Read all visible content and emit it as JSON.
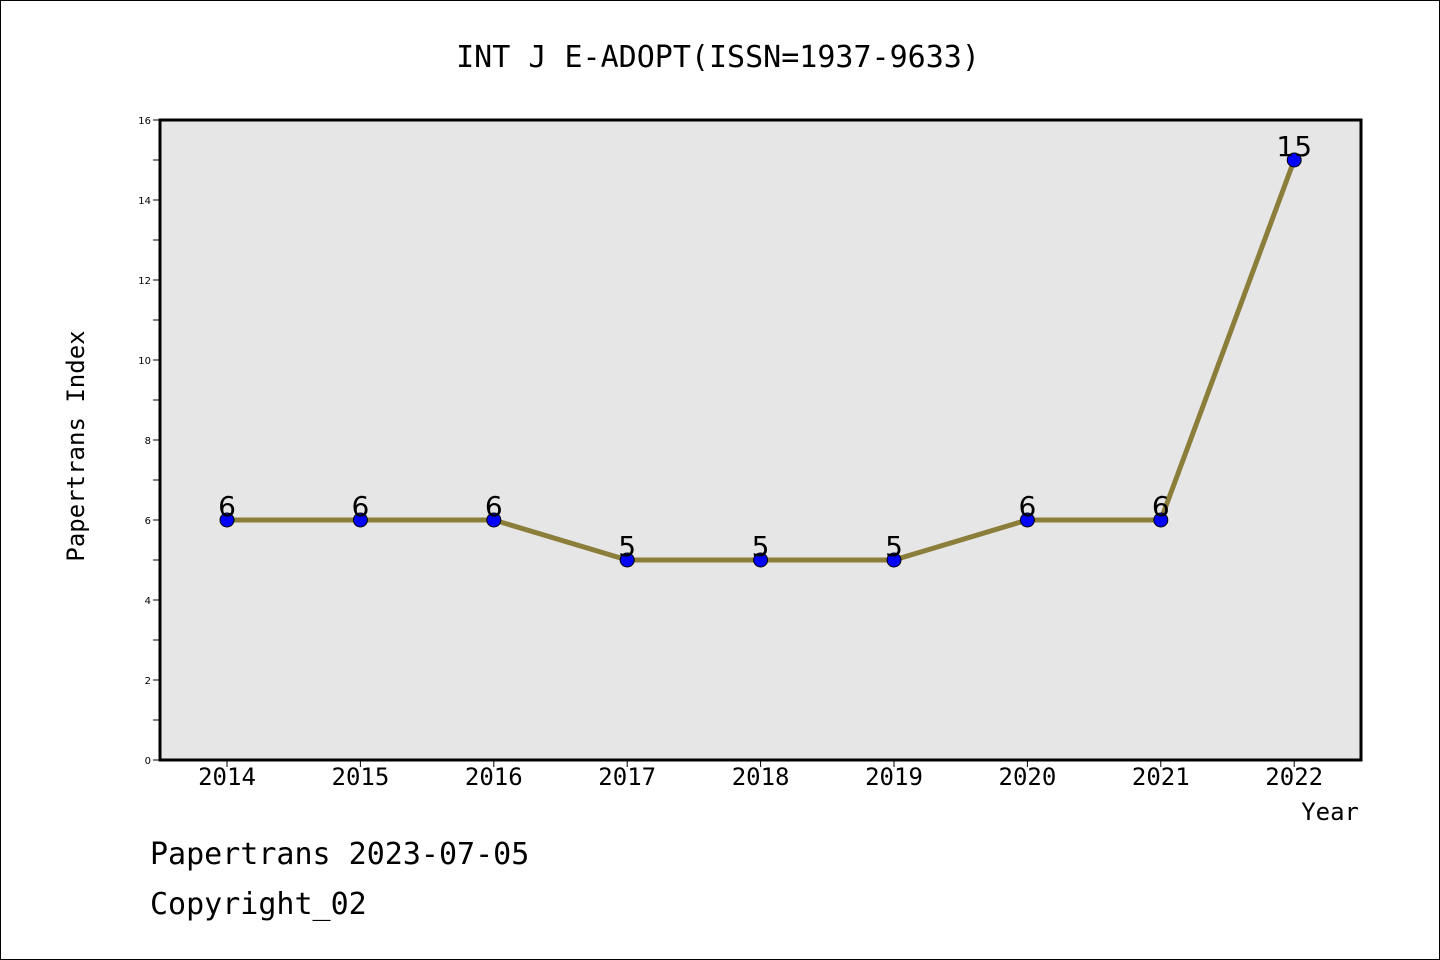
{
  "chart_data": {
    "type": "line",
    "title": "INT J E-ADOPT(ISSN=1937-9633)",
    "xlabel": "Year",
    "ylabel": "Papertrans Index",
    "categories": [
      "2014",
      "2015",
      "2016",
      "2017",
      "2018",
      "2019",
      "2020",
      "2021",
      "2022"
    ],
    "series": [
      {
        "values": [
          6,
          6,
          6,
          5,
          5,
          5,
          6,
          6,
          15
        ]
      }
    ],
    "ylim": [
      0,
      16
    ],
    "yticks": [
      0,
      2,
      4,
      6,
      8,
      10,
      12,
      14,
      16
    ],
    "grid": false,
    "legend": "none",
    "colors": {
      "line": "#8b7d3a",
      "marker": "#0000ff",
      "plot_background": "#e6e6e6"
    }
  },
  "footer": {
    "line1": "Papertrans 2023-07-05",
    "line2": "Copyright_02"
  }
}
